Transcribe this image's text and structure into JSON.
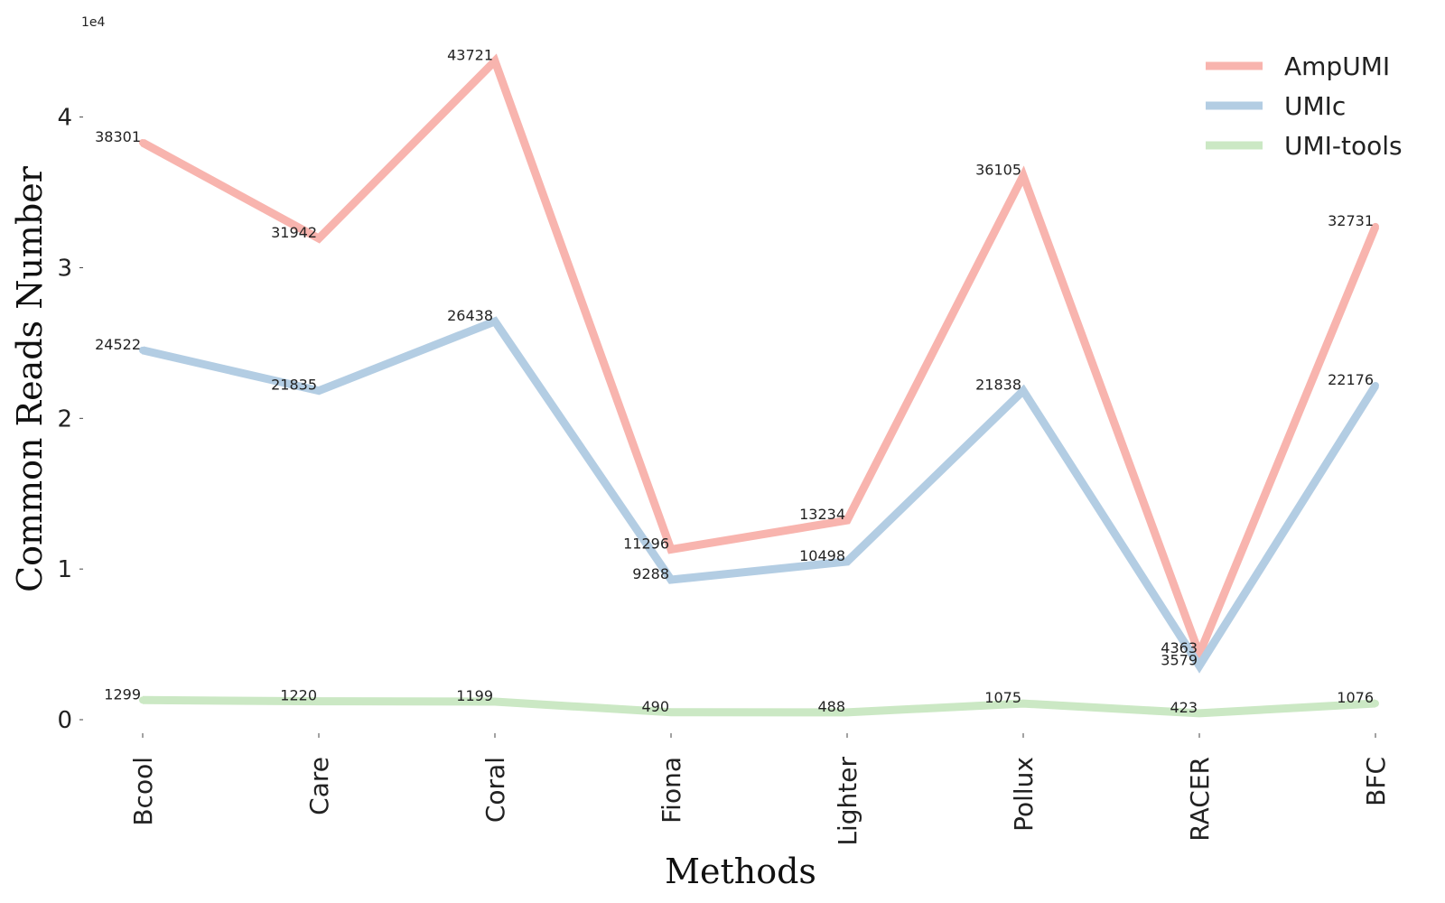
{
  "chart_data": {
    "type": "line",
    "categories": [
      "Bcool",
      "Care",
      "Coral",
      "Fiona",
      "Lighter",
      "Pollux",
      "RACER",
      "BFC"
    ],
    "series": [
      {
        "name": "AmpUMI",
        "color": "#f8b4ae",
        "values": [
          38301,
          31942,
          43721,
          11296,
          13234,
          36105,
          4363,
          32731
        ]
      },
      {
        "name": "UMIc",
        "color": "#b3cde3",
        "values": [
          24522,
          21835,
          26438,
          9288,
          10498,
          21838,
          3579,
          22176
        ]
      },
      {
        "name": "UMI-tools",
        "color": "#cbe8c4",
        "values": [
          1299,
          1220,
          1199,
          490,
          488,
          1075,
          423,
          1076
        ]
      }
    ],
    "xlabel": "Methods",
    "ylabel": "Common Reads Number",
    "y_exponent_label": "1e4",
    "ylim": [
      -1000,
      45000
    ],
    "yticks": [
      0,
      10000,
      20000,
      30000,
      40000
    ],
    "ytick_labels": [
      "0",
      "1",
      "2",
      "3",
      "4"
    ],
    "legend_position": "top-right",
    "grid": false,
    "data_labels": true
  }
}
